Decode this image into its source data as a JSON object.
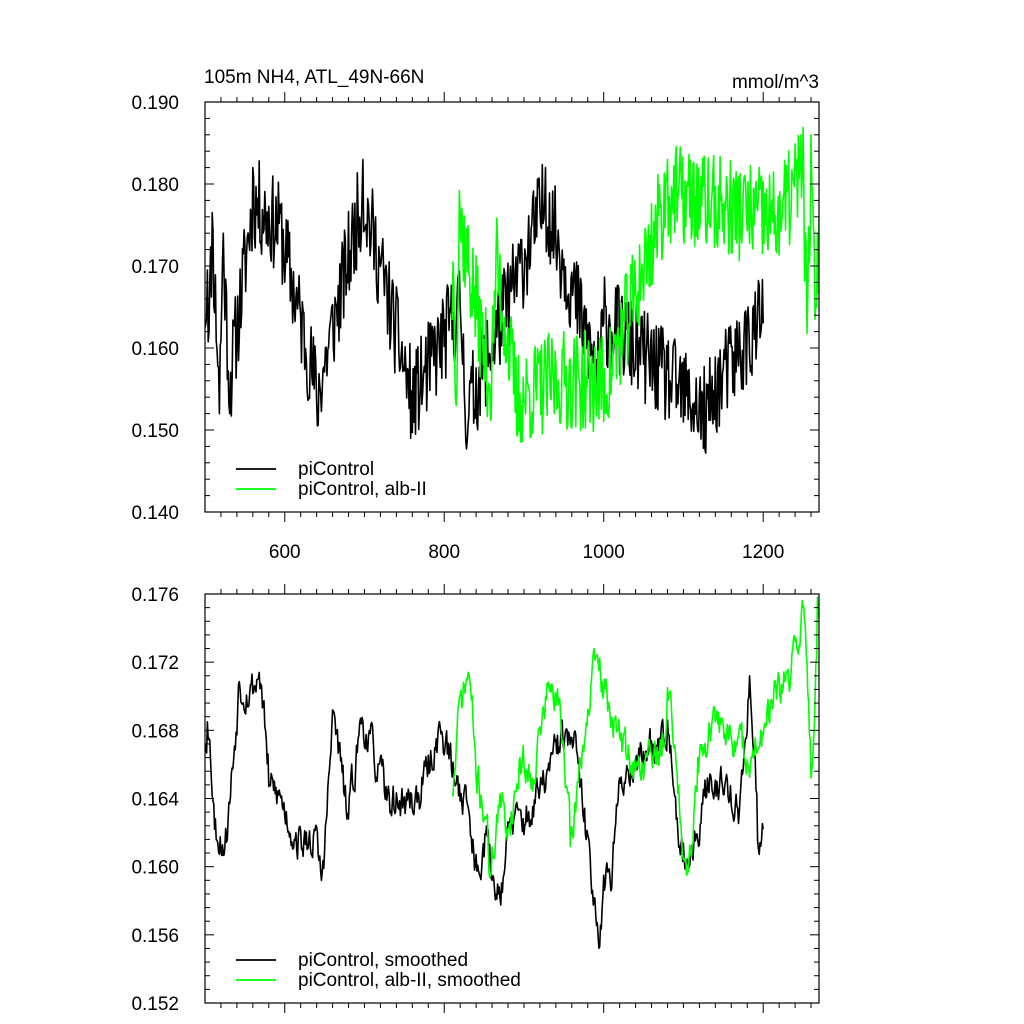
{
  "figure": {
    "left_title": "105m NH4, ATL_49N-66N",
    "right_title": "mmol/m^3"
  },
  "chart_data": [
    {
      "type": "line",
      "xlim": [
        500,
        1270
      ],
      "ylim": [
        0.14,
        0.19
      ],
      "xticks": [
        600,
        800,
        1000,
        1200
      ],
      "xtick_labels": [
        "600",
        "800",
        "1000",
        "1200"
      ],
      "yticks": [
        0.14,
        0.15,
        0.16,
        0.17,
        0.18,
        0.19
      ],
      "ytick_labels": [
        "0.140",
        "0.150",
        "0.160",
        "0.170",
        "0.180",
        "0.190"
      ],
      "grid": false,
      "legend_position": "bottom-left",
      "series": [
        {
          "name": "piControl",
          "color": "#000000",
          "x_start": 500,
          "x_end": 1200,
          "mean": 0.1655,
          "amplitude": 0.0058,
          "seed": 11,
          "anchors": [
            [
              503,
              0.1695
            ],
            [
              505,
              0.162
            ],
            [
              509,
              0.1765
            ],
            [
              518,
              0.152
            ],
            [
              523,
              0.174
            ],
            [
              531,
              0.152
            ],
            [
              560,
              0.182
            ],
            [
              594,
              0.1775
            ],
            [
              641,
              0.1505
            ],
            [
              698,
              0.183
            ],
            [
              760,
              0.1497
            ],
            [
              820,
              0.165
            ],
            [
              828,
              0.1477
            ],
            [
              927,
              0.182
            ],
            [
              994,
              0.1533
            ],
            [
              1000,
              0.163
            ],
            [
              1128,
              0.1472
            ],
            [
              1139,
              0.1513
            ],
            [
              1200,
              0.163
            ]
          ]
        },
        {
          "name": "piControl, alb-II",
          "color": "#00ff00",
          "x_start": 810,
          "x_end": 1270,
          "mean": 0.1665,
          "amplitude": 0.0062,
          "seed": 37,
          "anchors": [
            [
              811,
              0.1705
            ],
            [
              815,
              0.153
            ],
            [
              819,
              0.1792
            ],
            [
              859,
              0.1515
            ],
            [
              865,
              0.172
            ],
            [
              891,
              0.1493
            ],
            [
              942,
              0.1528
            ],
            [
              1003,
              0.152
            ],
            [
              1080,
              0.183
            ],
            [
              1219,
              0.1785
            ],
            [
              1250,
              0.1869
            ],
            [
              1255,
              0.1618
            ],
            [
              1260,
              0.186
            ],
            [
              1265,
              0.1635
            ],
            [
              1270,
              0.176
            ]
          ]
        }
      ]
    },
    {
      "type": "line",
      "xlim": [
        500,
        1270
      ],
      "ylim": [
        0.152,
        0.176
      ],
      "xticks": [
        600,
        800,
        1000,
        1200
      ],
      "xtick_labels": [],
      "yticks": [
        0.152,
        0.156,
        0.16,
        0.164,
        0.168,
        0.172,
        0.176
      ],
      "ytick_labels": [
        "0.152",
        "0.156",
        "0.160",
        "0.164",
        "0.168",
        "0.172",
        "0.176"
      ],
      "grid": false,
      "legend_position": "bottom-left",
      "series": [
        {
          "name": "piControl, smoothed",
          "color": "#000000",
          "x_start": 500,
          "x_end": 1200,
          "mean": 0.165,
          "amplitude": 0.0013,
          "seed": 53,
          "anchors": [
            [
              500,
              0.1672
            ],
            [
              503,
              0.1685
            ],
            [
              512,
              0.1622
            ],
            [
              525,
              0.1612
            ],
            [
              542,
              0.1707
            ],
            [
              556,
              0.1702
            ],
            [
              568,
              0.1714
            ],
            [
              580,
              0.1647
            ],
            [
              592,
              0.1642
            ],
            [
              612,
              0.1616
            ],
            [
              626,
              0.1613
            ],
            [
              636,
              0.1618
            ],
            [
              646,
              0.1592
            ],
            [
              660,
              0.1692
            ],
            [
              678,
              0.1628
            ],
            [
              695,
              0.1687
            ],
            [
              712,
              0.1664
            ],
            [
              728,
              0.1639
            ],
            [
              752,
              0.1637
            ],
            [
              768,
              0.1642
            ],
            [
              795,
              0.1682
            ],
            [
              812,
              0.1652
            ],
            [
              830,
              0.1635
            ],
            [
              838,
              0.1598
            ],
            [
              852,
              0.1619
            ],
            [
              860,
              0.1592
            ],
            [
              868,
              0.1584
            ],
            [
              882,
              0.1625
            ],
            [
              905,
              0.1628
            ],
            [
              930,
              0.1657
            ],
            [
              946,
              0.1675
            ],
            [
              962,
              0.1672
            ],
            [
              978,
              0.1616
            ],
            [
              990,
              0.1572
            ],
            [
              993,
              0.1559
            ],
            [
              1000,
              0.1595
            ],
            [
              1008,
              0.1592
            ],
            [
              1020,
              0.1652
            ],
            [
              1040,
              0.1662
            ],
            [
              1055,
              0.1668
            ],
            [
              1068,
              0.1675
            ],
            [
              1080,
              0.1686
            ],
            [
              1096,
              0.1607
            ],
            [
              1112,
              0.1604
            ],
            [
              1130,
              0.1652
            ],
            [
              1152,
              0.1648
            ],
            [
              1170,
              0.1632
            ],
            [
              1183,
              0.1712
            ],
            [
              1193,
              0.1615
            ],
            [
              1197,
              0.1612
            ],
            [
              1200,
              0.1622
            ]
          ]
        },
        {
          "name": "piControl, alb-II, smoothed",
          "color": "#00ff00",
          "x_start": 810,
          "x_end": 1270,
          "mean": 0.1665,
          "amplitude": 0.0013,
          "seed": 71,
          "anchors": [
            [
              810,
              0.1643
            ],
            [
              818,
              0.1695
            ],
            [
              830,
              0.1714
            ],
            [
              840,
              0.1652
            ],
            [
              852,
              0.1628
            ],
            [
              856,
              0.1597
            ],
            [
              868,
              0.1636
            ],
            [
              880,
              0.1622
            ],
            [
              895,
              0.1664
            ],
            [
              910,
              0.1652
            ],
            [
              920,
              0.1682
            ],
            [
              930,
              0.1706
            ],
            [
              946,
              0.1689
            ],
            [
              958,
              0.1612
            ],
            [
              970,
              0.1664
            ],
            [
              990,
              0.1723
            ],
            [
              1000,
              0.1702
            ],
            [
              1016,
              0.1679
            ],
            [
              1040,
              0.1656
            ],
            [
              1060,
              0.1667
            ],
            [
              1072,
              0.1665
            ],
            [
              1080,
              0.1705
            ],
            [
              1096,
              0.1626
            ],
            [
              1105,
              0.1596
            ],
            [
              1118,
              0.1664
            ],
            [
              1140,
              0.1685
            ],
            [
              1160,
              0.1676
            ],
            [
              1186,
              0.1664
            ],
            [
              1200,
              0.1677
            ],
            [
              1210,
              0.1698
            ],
            [
              1225,
              0.1705
            ],
            [
              1232,
              0.1708
            ],
            [
              1240,
              0.1732
            ],
            [
              1250,
              0.1752
            ],
            [
              1258,
              0.1678
            ],
            [
              1260,
              0.1652
            ],
            [
              1268,
              0.1758
            ],
            [
              1272,
              0.1725
            ],
            [
              1276,
              0.1692
            ],
            [
              1278,
              0.1668
            ],
            [
              1280,
              0.1696
            ]
          ]
        }
      ]
    }
  ]
}
